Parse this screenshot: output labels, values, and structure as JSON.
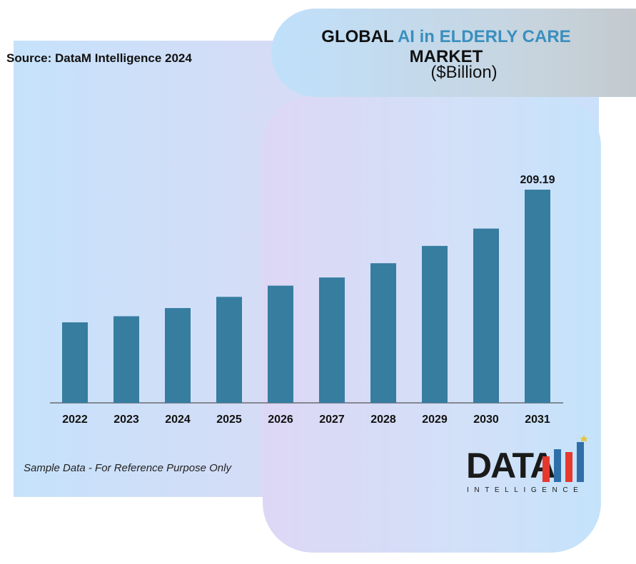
{
  "header": {
    "title_prefix": "GLOBAL",
    "title_accent": "AI in ELDERLY CARE",
    "title_line2": "MARKET",
    "subtitle": "($Billion)",
    "source": "Source: DataM Intelligence 2024"
  },
  "footer": {
    "note": "Sample Data - For Reference Purpose Only"
  },
  "logo": {
    "word": "DATA",
    "tagline": "INTELLIGENCE"
  },
  "colors": {
    "bar": "#367da0",
    "accent": "#3a8fbe",
    "logo_red": "#e6392e",
    "logo_blue": "#2f6fa8"
  },
  "chart_data": {
    "type": "bar",
    "categories": [
      "2022",
      "2023",
      "2024",
      "2025",
      "2026",
      "2027",
      "2028",
      "2029",
      "2030",
      "2031"
    ],
    "values": [
      79,
      85,
      93,
      104,
      115,
      123,
      137,
      154,
      171,
      209.19
    ],
    "data_labels": {
      "9": "209.19"
    },
    "title": "GLOBAL AI in ELDERLY CARE MARKET",
    "subtitle": "($Billion)",
    "xlabel": "",
    "ylabel": "",
    "ylim": [
      0,
      209.19
    ],
    "grid": false,
    "legend": "none"
  }
}
